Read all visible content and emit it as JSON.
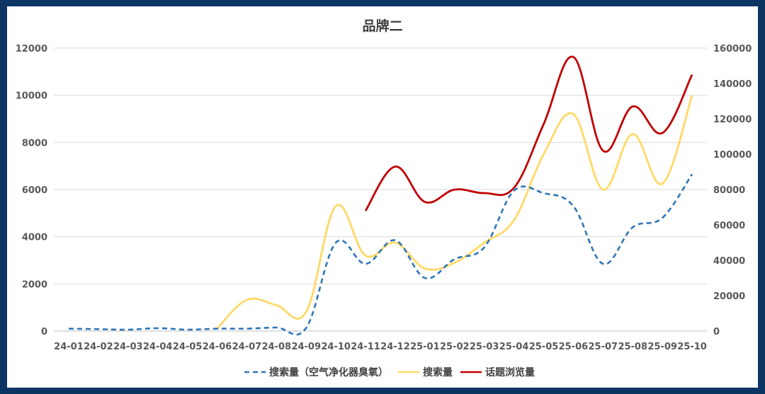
{
  "chart_data": {
    "type": "line",
    "title": "品牌二",
    "categories": [
      "24-01",
      "24-02",
      "24-03",
      "24-04",
      "24-05",
      "24-06",
      "24-07",
      "24-08",
      "24-09",
      "24-10",
      "24-11",
      "24-12",
      "25-01",
      "25-02",
      "25-03",
      "25-04",
      "25-05",
      "25-06",
      "25-07",
      "25-08",
      "25-09",
      "25-10"
    ],
    "y_left": {
      "min": 0,
      "max": 12000,
      "ticks": [
        "0",
        "2000",
        "4000",
        "6000",
        "8000",
        "10000",
        "12000"
      ]
    },
    "y_right": {
      "min": 0,
      "max": 160000,
      "ticks": [
        "0",
        "20000",
        "40000",
        "60000",
        "80000",
        "100000",
        "120000",
        "140000",
        "160000"
      ]
    },
    "grid": true,
    "legend_position": "bottom",
    "series": [
      {
        "name": "搜索量（空气净化器臭氧）",
        "axis": "left",
        "style": "dashed",
        "color": "#2e75b6",
        "values": [
          100,
          80,
          60,
          120,
          60,
          100,
          100,
          150,
          130,
          3750,
          2850,
          3850,
          2250,
          3050,
          3550,
          5950,
          5850,
          5300,
          2850,
          4400,
          4800,
          6650
        ]
      },
      {
        "name": "搜索量",
        "axis": "left",
        "style": "solid",
        "color": "#ffd966",
        "values": [
          null,
          null,
          null,
          null,
          null,
          100,
          1320,
          1100,
          810,
          5300,
          3200,
          3750,
          2650,
          2900,
          3750,
          4700,
          7500,
          9200,
          6000,
          8350,
          6250,
          10000
        ]
      },
      {
        "name": "话题浏览量",
        "axis": "right",
        "style": "solid",
        "color": "#c00000",
        "values": [
          null,
          null,
          null,
          null,
          null,
          null,
          null,
          null,
          null,
          null,
          68000,
          93000,
          73000,
          80000,
          78000,
          81000,
          117000,
          155000,
          102000,
          127000,
          112000,
          145000
        ]
      }
    ]
  }
}
